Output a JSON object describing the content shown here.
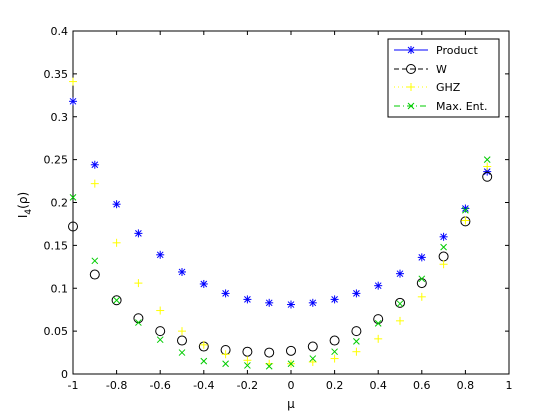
{
  "chart_data": {
    "type": "scatter",
    "xlabel": "μ",
    "ylabel_main": "I",
    "ylabel_sub": "4",
    "ylabel_tail": "(ρ)",
    "xlim": [
      -1,
      1
    ],
    "ylim": [
      0,
      0.4
    ],
    "xticks": [
      "-1",
      "-0.8",
      "-0.6",
      "-0.4",
      "-0.2",
      "0",
      "0.2",
      "0.4",
      "0.6",
      "0.8",
      "1"
    ],
    "yticks": [
      "0",
      "0.05",
      "0.1",
      "0.15",
      "0.2",
      "0.25",
      "0.3",
      "0.35",
      "0.4"
    ],
    "grid": false,
    "legend_position": "top-right",
    "x": [
      -1,
      -0.9,
      -0.8,
      -0.7,
      -0.6,
      -0.5,
      -0.4,
      -0.3,
      -0.2,
      -0.1,
      0,
      0.1,
      0.2,
      0.3,
      0.4,
      0.5,
      0.6,
      0.7,
      0.8,
      0.9
    ],
    "series": [
      {
        "name": "Product",
        "color": "#0000ff",
        "marker": "asterisk",
        "line": "solid",
        "values": [
          0.318,
          0.244,
          0.198,
          0.164,
          0.139,
          0.119,
          0.105,
          0.094,
          0.087,
          0.083,
          0.081,
          0.083,
          0.087,
          0.094,
          0.103,
          0.117,
          0.136,
          0.16,
          0.193,
          0.236
        ]
      },
      {
        "name": "W",
        "color": "#000000",
        "marker": "circle",
        "line": "dashed",
        "values": [
          0.172,
          0.116,
          0.086,
          0.065,
          0.05,
          0.039,
          0.032,
          0.028,
          0.026,
          0.025,
          0.027,
          0.032,
          0.039,
          0.05,
          0.064,
          0.083,
          0.106,
          0.137,
          0.178,
          0.23
        ]
      },
      {
        "name": "GHZ",
        "color": "#ffff00",
        "marker": "plus",
        "line": "dotted",
        "values": [
          0.341,
          0.222,
          0.153,
          0.106,
          0.074,
          0.05,
          0.034,
          0.023,
          0.016,
          0.012,
          0.012,
          0.014,
          0.018,
          0.026,
          0.041,
          0.062,
          0.09,
          0.128,
          0.179,
          0.242
        ]
      },
      {
        "name": "Max. Ent.",
        "color": "#00cc00",
        "marker": "x",
        "line": "dashdot",
        "values": [
          0.206,
          0.132,
          0.086,
          0.06,
          0.04,
          0.025,
          0.015,
          0.012,
          0.01,
          0.009,
          0.012,
          0.018,
          0.026,
          0.038,
          0.059,
          0.082,
          0.111,
          0.148,
          0.191,
          0.25
        ]
      }
    ]
  }
}
